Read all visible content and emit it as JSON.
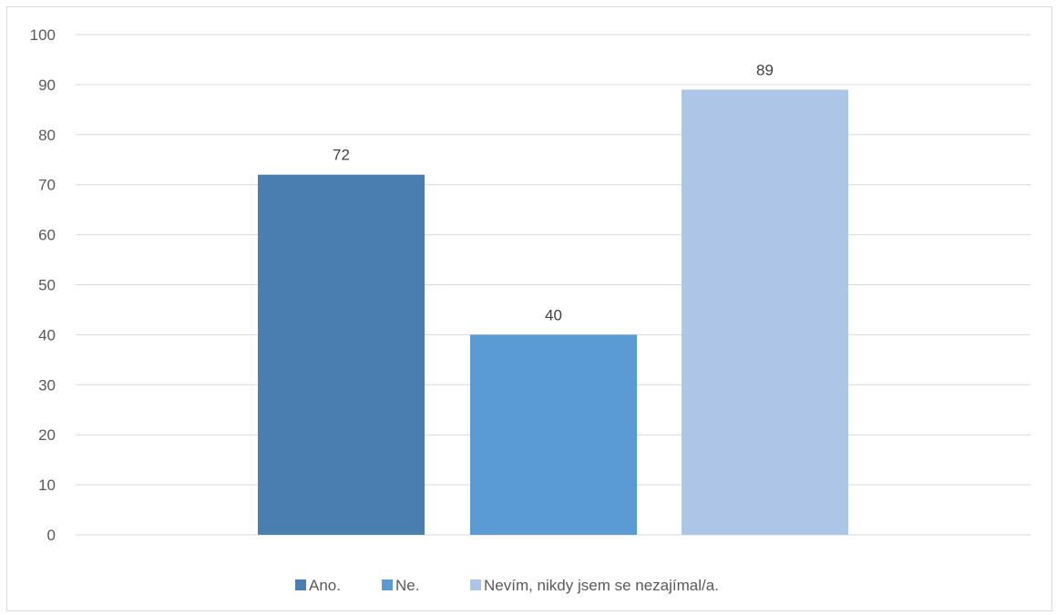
{
  "chart_data": {
    "type": "bar",
    "categories": [
      ""
    ],
    "series": [
      {
        "name": "Ano.",
        "values": [
          72
        ],
        "color": "#4a7eb0"
      },
      {
        "name": "Ne.",
        "values": [
          40
        ],
        "color": "#5b9bd5"
      },
      {
        "name": "Nevím, nikdy jsem se nezajímal/a.",
        "values": [
          89
        ],
        "color": "#adc5e6"
      }
    ],
    "title": "",
    "xlabel": "",
    "ylabel": "",
    "ylim": [
      0,
      100
    ],
    "yticks": [
      "0",
      "10",
      "20",
      "30",
      "40",
      "50",
      "60",
      "70",
      "80",
      "90",
      "100"
    ],
    "data_labels": [
      "72",
      "40",
      "89"
    ],
    "grid": true,
    "legend_position": "bottom",
    "colors": {
      "gridline": "#d9d9d9",
      "axis_text": "#595959",
      "label_text": "#404040"
    }
  }
}
